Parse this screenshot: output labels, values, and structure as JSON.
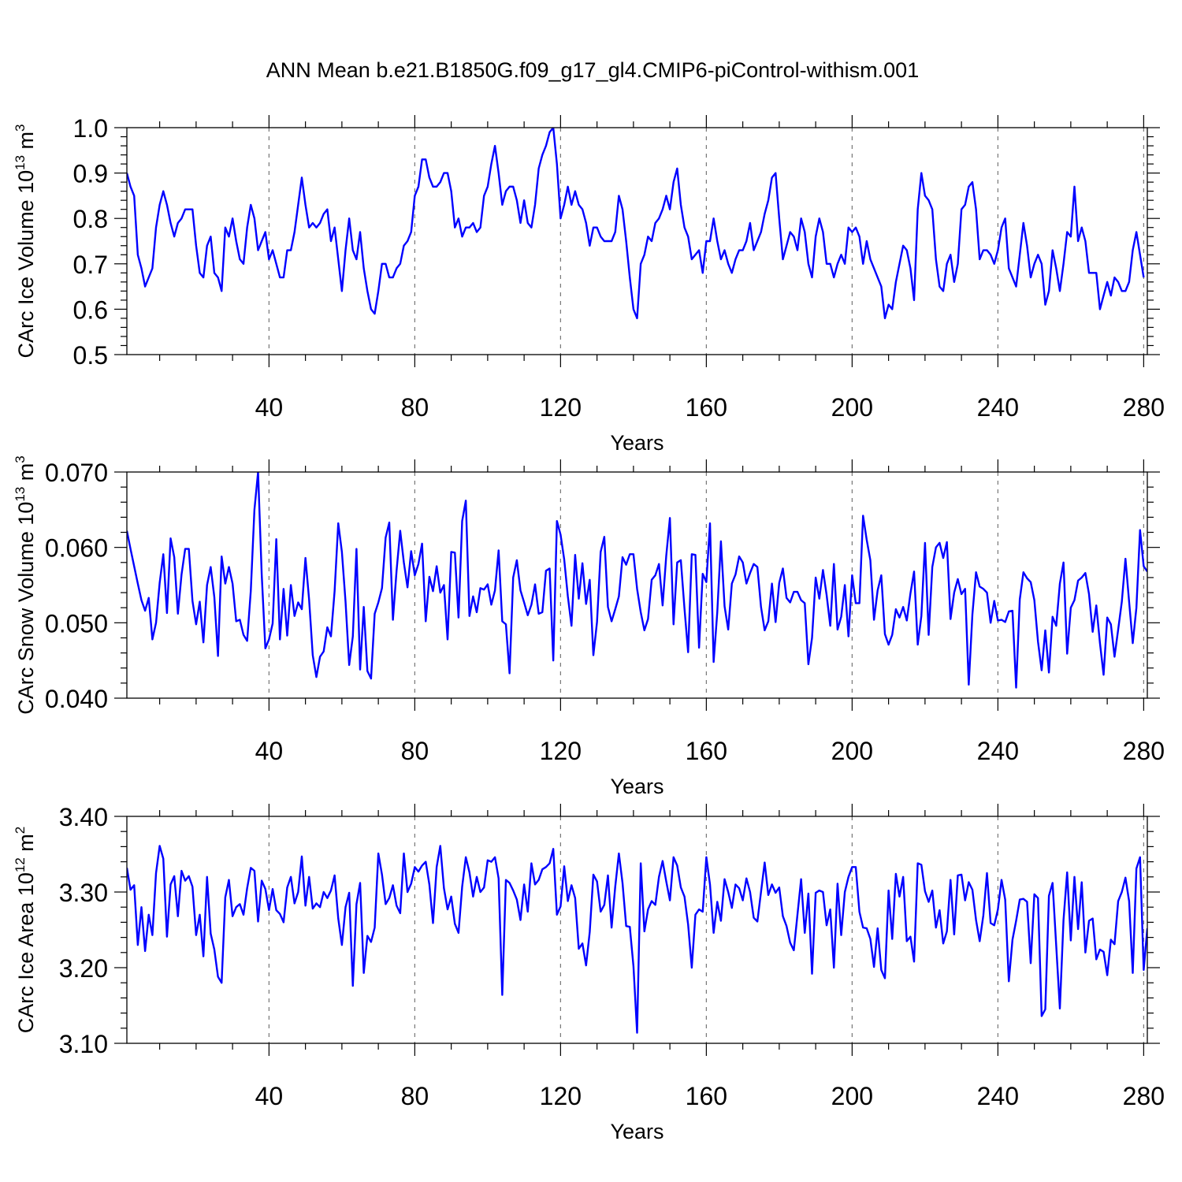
{
  "figure": {
    "title": "ANN Mean b.e21.B1850G.f09_g17_gl4.CMIP6-piControl-withism.001",
    "line_color": "#0000ff"
  },
  "chart_data": [
    {
      "type": "line",
      "title": "",
      "xlabel": "Years",
      "ylabel": "CArc Ice Volume 10",
      "ylabel_exponent": "13",
      "ylabel_unit": "m",
      "ylabel_unit_exponent": "3",
      "xlim": [
        1,
        281
      ],
      "ylim": [
        0.5,
        1.0
      ],
      "x_ticks": [
        40,
        80,
        120,
        160,
        200,
        240,
        280
      ],
      "x_tick_labels": [
        "40",
        "80",
        "120",
        "160",
        "200",
        "240",
        "280"
      ],
      "y_ticks": [
        0.5,
        0.6,
        0.7,
        0.8,
        0.9,
        1.0
      ],
      "y_tick_labels": [
        "0.5",
        "0.6",
        "0.7",
        "0.8",
        "0.9",
        "1.0"
      ],
      "grid": "dashed vertical at x ticks",
      "x_start": 1,
      "values": [
        0.9,
        0.87,
        0.85,
        0.72,
        0.69,
        0.65,
        0.67,
        0.69,
        0.78,
        0.83,
        0.86,
        0.83,
        0.79,
        0.76,
        0.79,
        0.8,
        0.82,
        0.82,
        0.82,
        0.74,
        0.68,
        0.67,
        0.74,
        0.76,
        0.68,
        0.67,
        0.64,
        0.78,
        0.76,
        0.8,
        0.75,
        0.71,
        0.7,
        0.78,
        0.83,
        0.8,
        0.73,
        0.75,
        0.77,
        0.71,
        0.73,
        0.7,
        0.67,
        0.67,
        0.73,
        0.73,
        0.77,
        0.83,
        0.89,
        0.83,
        0.78,
        0.79,
        0.78,
        0.79,
        0.81,
        0.82,
        0.75,
        0.78,
        0.71,
        0.64,
        0.73,
        0.8,
        0.73,
        0.71,
        0.77,
        0.69,
        0.64,
        0.6,
        0.59,
        0.64,
        0.7,
        0.7,
        0.67,
        0.67,
        0.69,
        0.7,
        0.74,
        0.75,
        0.77,
        0.85,
        0.87,
        0.93,
        0.93,
        0.89,
        0.87,
        0.87,
        0.88,
        0.9,
        0.9,
        0.86,
        0.78,
        0.8,
        0.76,
        0.78,
        0.78,
        0.79,
        0.77,
        0.78,
        0.85,
        0.87,
        0.92,
        0.96,
        0.9,
        0.83,
        0.86,
        0.87,
        0.87,
        0.84,
        0.79,
        0.84,
        0.79,
        0.78,
        0.83,
        0.91,
        0.94,
        0.96,
        0.99,
        1.0,
        0.92,
        0.8,
        0.83,
        0.87,
        0.83,
        0.86,
        0.83,
        0.82,
        0.79,
        0.74,
        0.78,
        0.78,
        0.76,
        0.75,
        0.75,
        0.75,
        0.77,
        0.85,
        0.82,
        0.75,
        0.67,
        0.6,
        0.58,
        0.7,
        0.72,
        0.76,
        0.75,
        0.79,
        0.8,
        0.82,
        0.85,
        0.82,
        0.88,
        0.91,
        0.83,
        0.78,
        0.76,
        0.71,
        0.72,
        0.73,
        0.68,
        0.75,
        0.75,
        0.8,
        0.75,
        0.71,
        0.73,
        0.7,
        0.68,
        0.71,
        0.73,
        0.73,
        0.75,
        0.79,
        0.73,
        0.75,
        0.77,
        0.81,
        0.84,
        0.89,
        0.9,
        0.8,
        0.71,
        0.74,
        0.77,
        0.76,
        0.73,
        0.8,
        0.77,
        0.7,
        0.67,
        0.76,
        0.8,
        0.77,
        0.7,
        0.7,
        0.67,
        0.7,
        0.72,
        0.7,
        0.78,
        0.77,
        0.78,
        0.76,
        0.7,
        0.75,
        0.71,
        0.69,
        0.67,
        0.65,
        0.58,
        0.61,
        0.6,
        0.66,
        0.7,
        0.74,
        0.73,
        0.69,
        0.62,
        0.82,
        0.9,
        0.85,
        0.84,
        0.82,
        0.71,
        0.65,
        0.64,
        0.7,
        0.72,
        0.66,
        0.7,
        0.82,
        0.83,
        0.87,
        0.88,
        0.82,
        0.71,
        0.73,
        0.73,
        0.72,
        0.7,
        0.73,
        0.78,
        0.8,
        0.69,
        0.67,
        0.65,
        0.72,
        0.79,
        0.74,
        0.67,
        0.7,
        0.72,
        0.7,
        0.61,
        0.64,
        0.73,
        0.69,
        0.64,
        0.7,
        0.77,
        0.76,
        0.87,
        0.75,
        0.78,
        0.75,
        0.68,
        0.68,
        0.68,
        0.6,
        0.63,
        0.66,
        0.63,
        0.67,
        0.66,
        0.64,
        0.64,
        0.66,
        0.73,
        0.77,
        0.72,
        0.67
      ]
    },
    {
      "type": "line",
      "title": "",
      "xlabel": "Years",
      "ylabel": "CArc Snow Volume 10",
      "ylabel_exponent": "13",
      "ylabel_unit": "m",
      "ylabel_unit_exponent": "3",
      "xlim": [
        1,
        281
      ],
      "ylim": [
        0.04,
        0.07
      ],
      "x_ticks": [
        40,
        80,
        120,
        160,
        200,
        240,
        280
      ],
      "x_tick_labels": [
        "40",
        "80",
        "120",
        "160",
        "200",
        "240",
        "280"
      ],
      "y_ticks": [
        0.04,
        0.05,
        0.06,
        0.07
      ],
      "y_tick_labels": [
        "0.040",
        "0.050",
        "0.060",
        "0.070"
      ],
      "grid": "dashed vertical at x ticks",
      "x_start": 1,
      "values": [
        0.0622,
        0.0598,
        0.0575,
        0.0552,
        0.053,
        0.0516,
        0.0533,
        0.0478,
        0.05,
        0.0553,
        0.0591,
        0.0513,
        0.0612,
        0.0587,
        0.0512,
        0.0564,
        0.0598,
        0.0598,
        0.0529,
        0.0498,
        0.0528,
        0.0474,
        0.055,
        0.0574,
        0.0534,
        0.0456,
        0.0588,
        0.0552,
        0.0574,
        0.0552,
        0.0502,
        0.0504,
        0.0484,
        0.0476,
        0.0542,
        0.065,
        0.07,
        0.0564,
        0.0466,
        0.0478,
        0.0499,
        0.0611,
        0.0478,
        0.0545,
        0.0483,
        0.055,
        0.0509,
        0.0527,
        0.0518,
        0.0586,
        0.0531,
        0.0457,
        0.0428,
        0.0455,
        0.0462,
        0.0494,
        0.0482,
        0.0542,
        0.0632,
        0.0594,
        0.0528,
        0.0444,
        0.0482,
        0.0598,
        0.0438,
        0.0521,
        0.0436,
        0.0426,
        0.0512,
        0.0527,
        0.0546,
        0.0613,
        0.0633,
        0.0504,
        0.0569,
        0.0622,
        0.058,
        0.0547,
        0.0595,
        0.0563,
        0.0578,
        0.0605,
        0.0502,
        0.0561,
        0.0542,
        0.0575,
        0.054,
        0.055,
        0.0478,
        0.0594,
        0.0593,
        0.0507,
        0.0635,
        0.0662,
        0.0509,
        0.0535,
        0.0514,
        0.0546,
        0.0544,
        0.0551,
        0.0524,
        0.0543,
        0.0596,
        0.0502,
        0.0498,
        0.0433,
        0.056,
        0.0583,
        0.0543,
        0.0527,
        0.051,
        0.0524,
        0.0551,
        0.0512,
        0.0514,
        0.0569,
        0.0572,
        0.045,
        0.0635,
        0.0617,
        0.0584,
        0.0535,
        0.0496,
        0.059,
        0.0532,
        0.0579,
        0.0525,
        0.0557,
        0.0457,
        0.0501,
        0.0594,
        0.0614,
        0.0521,
        0.0502,
        0.0518,
        0.0535,
        0.0587,
        0.0577,
        0.0591,
        0.0591,
        0.0545,
        0.0514,
        0.049,
        0.0505,
        0.0557,
        0.0563,
        0.0578,
        0.0523,
        0.0589,
        0.0639,
        0.0498,
        0.058,
        0.0583,
        0.0519,
        0.0461,
        0.0591,
        0.059,
        0.0467,
        0.0565,
        0.0554,
        0.0632,
        0.0448,
        0.0514,
        0.0608,
        0.0522,
        0.0491,
        0.0552,
        0.0564,
        0.0588,
        0.058,
        0.0552,
        0.0566,
        0.0578,
        0.0574,
        0.0521,
        0.049,
        0.0502,
        0.0552,
        0.0501,
        0.0553,
        0.0572,
        0.0533,
        0.0527,
        0.0541,
        0.0541,
        0.053,
        0.0526,
        0.0445,
        0.048,
        0.056,
        0.0532,
        0.057,
        0.0537,
        0.0496,
        0.0578,
        0.0491,
        0.0508,
        0.055,
        0.0482,
        0.0563,
        0.0526,
        0.0526,
        0.0642,
        0.061,
        0.0583,
        0.0504,
        0.0543,
        0.0563,
        0.0485,
        0.0471,
        0.0484,
        0.0518,
        0.0507,
        0.0521,
        0.0503,
        0.0539,
        0.0568,
        0.0471,
        0.0509,
        0.0606,
        0.0484,
        0.0574,
        0.06,
        0.0606,
        0.0586,
        0.0607,
        0.0505,
        0.054,
        0.0558,
        0.0538,
        0.0545,
        0.0418,
        0.0511,
        0.0567,
        0.0548,
        0.0545,
        0.054,
        0.05,
        0.0529,
        0.0503,
        0.0504,
        0.0501,
        0.0515,
        0.0516,
        0.0414,
        0.0531,
        0.0567,
        0.0559,
        0.0554,
        0.053,
        0.0475,
        0.0437,
        0.049,
        0.0434,
        0.0508,
        0.0496,
        0.0552,
        0.058,
        0.0459,
        0.052,
        0.053,
        0.0556,
        0.056,
        0.0566,
        0.0538,
        0.0488,
        0.0523,
        0.0473,
        0.0431,
        0.0507,
        0.0498,
        0.0455,
        0.0491,
        0.0528,
        0.0585,
        0.0528,
        0.0473,
        0.052,
        0.0623,
        0.0575,
        0.0568
      ]
    },
    {
      "type": "line",
      "title": "",
      "xlabel": "Years",
      "ylabel": "CArc Ice Area 10",
      "ylabel_exponent": "12",
      "ylabel_unit": "m",
      "ylabel_unit_exponent": "2",
      "xlim": [
        1,
        281
      ],
      "ylim": [
        3.1,
        3.4
      ],
      "x_ticks": [
        40,
        80,
        120,
        160,
        200,
        240,
        280
      ],
      "x_tick_labels": [
        "40",
        "80",
        "120",
        "160",
        "200",
        "240",
        "280"
      ],
      "y_ticks": [
        3.1,
        3.2,
        3.3,
        3.4
      ],
      "y_tick_labels": [
        "3.10",
        "3.20",
        "3.30",
        "3.40"
      ],
      "grid": "dashed vertical at x ticks",
      "x_start": 1,
      "values": [
        3.332,
        3.303,
        3.309,
        3.23,
        3.28,
        3.222,
        3.27,
        3.243,
        3.325,
        3.361,
        3.344,
        3.241,
        3.31,
        3.321,
        3.268,
        3.328,
        3.315,
        3.321,
        3.307,
        3.243,
        3.27,
        3.215,
        3.32,
        3.245,
        3.224,
        3.188,
        3.18,
        3.293,
        3.316,
        3.268,
        3.28,
        3.284,
        3.27,
        3.305,
        3.332,
        3.328,
        3.261,
        3.315,
        3.304,
        3.276,
        3.304,
        3.276,
        3.271,
        3.26,
        3.306,
        3.32,
        3.285,
        3.3,
        3.347,
        3.282,
        3.32,
        3.278,
        3.285,
        3.28,
        3.3,
        3.292,
        3.302,
        3.322,
        3.265,
        3.23,
        3.28,
        3.299,
        3.176,
        3.284,
        3.312,
        3.193,
        3.242,
        3.234,
        3.253,
        3.351,
        3.323,
        3.284,
        3.292,
        3.309,
        3.282,
        3.272,
        3.351,
        3.3,
        3.311,
        3.333,
        3.327,
        3.335,
        3.34,
        3.31,
        3.259,
        3.333,
        3.361,
        3.305,
        3.277,
        3.294,
        3.258,
        3.246,
        3.307,
        3.346,
        3.326,
        3.294,
        3.32,
        3.3,
        3.306,
        3.342,
        3.34,
        3.346,
        3.318,
        3.164,
        3.316,
        3.312,
        3.302,
        3.29,
        3.263,
        3.31,
        3.274,
        3.338,
        3.31,
        3.316,
        3.33,
        3.333,
        3.338,
        3.357,
        3.27,
        3.281,
        3.334,
        3.288,
        3.309,
        3.292,
        3.225,
        3.232,
        3.203,
        3.247,
        3.323,
        3.314,
        3.274,
        3.283,
        3.322,
        3.253,
        3.307,
        3.351,
        3.312,
        3.255,
        3.254,
        3.202,
        3.114,
        3.338,
        3.248,
        3.277,
        3.288,
        3.283,
        3.32,
        3.341,
        3.314,
        3.289,
        3.346,
        3.335,
        3.306,
        3.294,
        3.257,
        3.2,
        3.27,
        3.277,
        3.274,
        3.346,
        3.31,
        3.246,
        3.287,
        3.262,
        3.317,
        3.3,
        3.279,
        3.31,
        3.305,
        3.289,
        3.318,
        3.3,
        3.266,
        3.261,
        3.3,
        3.339,
        3.296,
        3.31,
        3.299,
        3.306,
        3.268,
        3.255,
        3.233,
        3.223,
        3.27,
        3.317,
        3.246,
        3.298,
        3.192,
        3.299,
        3.302,
        3.3,
        3.256,
        3.277,
        3.2,
        3.311,
        3.243,
        3.3,
        3.32,
        3.333,
        3.333,
        3.274,
        3.253,
        3.252,
        3.238,
        3.201,
        3.252,
        3.197,
        3.186,
        3.302,
        3.238,
        3.324,
        3.294,
        3.32,
        3.235,
        3.241,
        3.208,
        3.338,
        3.336,
        3.301,
        3.287,
        3.302,
        3.253,
        3.276,
        3.232,
        3.248,
        3.316,
        3.244,
        3.322,
        3.323,
        3.289,
        3.313,
        3.303,
        3.263,
        3.235,
        3.269,
        3.325,
        3.259,
        3.256,
        3.277,
        3.316,
        3.29,
        3.182,
        3.237,
        3.262,
        3.29,
        3.291,
        3.287,
        3.206,
        3.297,
        3.292,
        3.136,
        3.145,
        3.295,
        3.312,
        3.229,
        3.146,
        3.263,
        3.326,
        3.236,
        3.32,
        3.251,
        3.313,
        3.22,
        3.262,
        3.265,
        3.211,
        3.224,
        3.221,
        3.19,
        3.237,
        3.231,
        3.288,
        3.3,
        3.319,
        3.288,
        3.193,
        3.331,
        3.346,
        3.197,
        3.252
      ]
    }
  ]
}
